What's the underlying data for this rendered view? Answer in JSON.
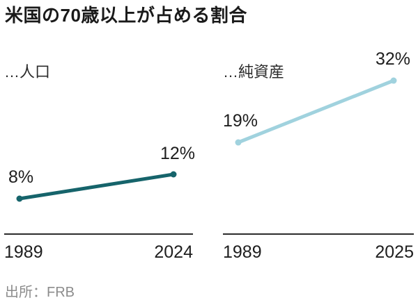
{
  "title": "米国の70歳以上が占める割合",
  "source": "出所：FRB",
  "colors": {
    "population_line": "#16646b",
    "networth_line": "#a0d2de",
    "axis": "#2b2b2b",
    "title_text": "#1a1a1a",
    "label_text": "#1e1e1e",
    "source_text": "#8c8c8c",
    "background": "#ffffff"
  },
  "chart_data": [
    {
      "type": "line",
      "name": "population-share",
      "title": "…人口",
      "x": [
        "1989",
        "2024"
      ],
      "values": [
        8,
        12
      ],
      "value_labels": [
        "8%",
        "12%"
      ],
      "color": "#16646b",
      "ylim": [
        0,
        14
      ],
      "grid": false,
      "legend": "none"
    },
    {
      "type": "line",
      "name": "net-worth-share",
      "title": "…純資産",
      "x": [
        "1989",
        "2025"
      ],
      "values": [
        19,
        32
      ],
      "value_labels": [
        "19%",
        "32%"
      ],
      "color": "#a0d2de",
      "ylim": [
        0,
        36
      ],
      "grid": false,
      "legend": "none"
    }
  ]
}
